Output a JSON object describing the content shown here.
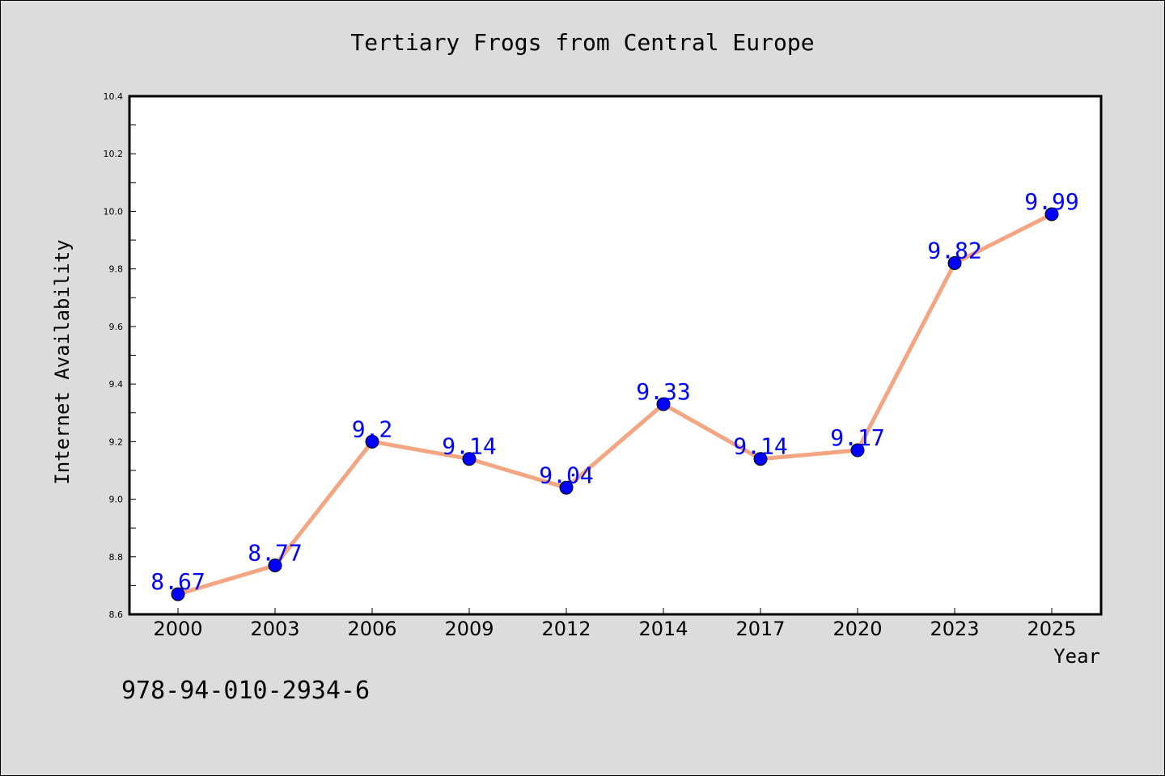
{
  "page": {
    "background": "#dcdcdc",
    "footer_text": "978-94-010-2934-6"
  },
  "chart_data": {
    "type": "line",
    "title": "Tertiary Frogs from Central Europe",
    "xlabel": "Year",
    "ylabel": "Internet Availability",
    "categories": [
      "2000",
      "2003",
      "2006",
      "2009",
      "2012",
      "2014",
      "2017",
      "2020",
      "2023",
      "2025"
    ],
    "series": [
      {
        "values": [
          8.67,
          8.77,
          9.2,
          9.14,
          9.04,
          9.33,
          9.14,
          9.17,
          9.82,
          9.99
        ],
        "data_labels": [
          "8.67",
          "8.77",
          "9.2",
          "9.14",
          "9.04",
          "9.33",
          "9.14",
          "9.17",
          "9.82",
          "9.99"
        ],
        "line_color": "#f4a582",
        "marker_color": "#0000ff",
        "label_color": "#0000ff"
      }
    ],
    "ylim": [
      8.6,
      10.4
    ],
    "yticks": [
      "8.6",
      "8.8",
      "9.0",
      "9.2",
      "9.4",
      "9.6",
      "9.8",
      "10.0",
      "10.2",
      "10.4"
    ],
    "grid": false,
    "legend": "none",
    "plot_background": "#ffffff"
  }
}
